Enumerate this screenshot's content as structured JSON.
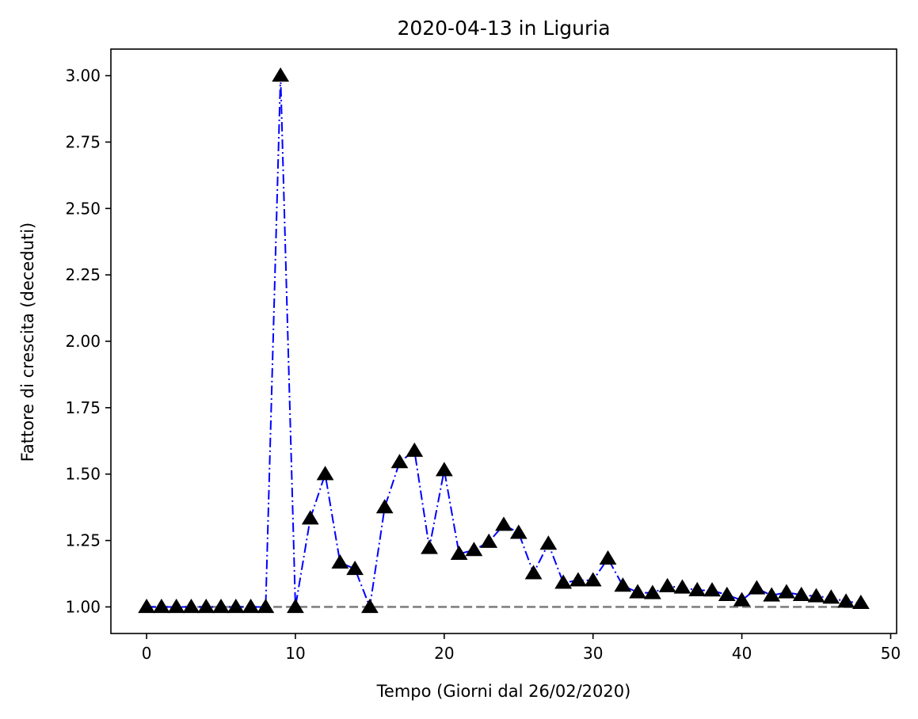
{
  "chart_data": {
    "type": "line",
    "title": "2020-04-13 in Liguria",
    "xlabel": "Tempo (Giorni dal 26/02/2020)",
    "ylabel": "Fattore di crescita (deceduti)",
    "xlim": [
      -2.4,
      50.4
    ],
    "ylim": [
      0.9,
      3.1
    ],
    "xticks": [
      0,
      10,
      20,
      30,
      40,
      50
    ],
    "yticks": [
      1.0,
      1.25,
      1.5,
      1.75,
      2.0,
      2.25,
      2.5,
      2.75,
      3.0
    ],
    "xtick_labels": [
      "0",
      "10",
      "20",
      "30",
      "40",
      "50"
    ],
    "ytick_labels": [
      "1.00",
      "1.25",
      "1.50",
      "1.75",
      "2.00",
      "2.25",
      "2.50",
      "2.75",
      "3.00"
    ],
    "grid": false,
    "series": [
      {
        "style": "dash-dot line with triangle markers",
        "line_color": "#0000ff",
        "marker_color": "#000000",
        "x": [
          0,
          1,
          2,
          3,
          4,
          5,
          6,
          7,
          8,
          9,
          10,
          11,
          12,
          13,
          14,
          15,
          16,
          17,
          18,
          19,
          20,
          21,
          22,
          23,
          24,
          25,
          26,
          27,
          28,
          29,
          30,
          31,
          32,
          33,
          34,
          35,
          36,
          37,
          38,
          39,
          40,
          41,
          42,
          43,
          44,
          45,
          46,
          47,
          48
        ],
        "y": [
          1.0,
          1.0,
          1.0,
          1.0,
          1.0,
          1.0,
          1.0,
          1.0,
          1.0,
          3.0,
          1.0,
          1.333,
          1.5,
          1.167,
          1.143,
          1.0,
          1.375,
          1.545,
          1.588,
          1.222,
          1.515,
          1.2,
          1.214,
          1.245,
          1.309,
          1.279,
          1.127,
          1.238,
          1.091,
          1.1,
          1.1,
          1.182,
          1.08,
          1.055,
          1.052,
          1.078,
          1.073,
          1.063,
          1.062,
          1.045,
          1.025,
          1.07,
          1.043,
          1.055,
          1.045,
          1.04,
          1.035,
          1.02,
          1.015
        ]
      },
      {
        "style": "dashed reference line",
        "line_color": "#808080",
        "x": [
          0,
          48
        ],
        "y": [
          1.0,
          1.0
        ]
      }
    ]
  }
}
